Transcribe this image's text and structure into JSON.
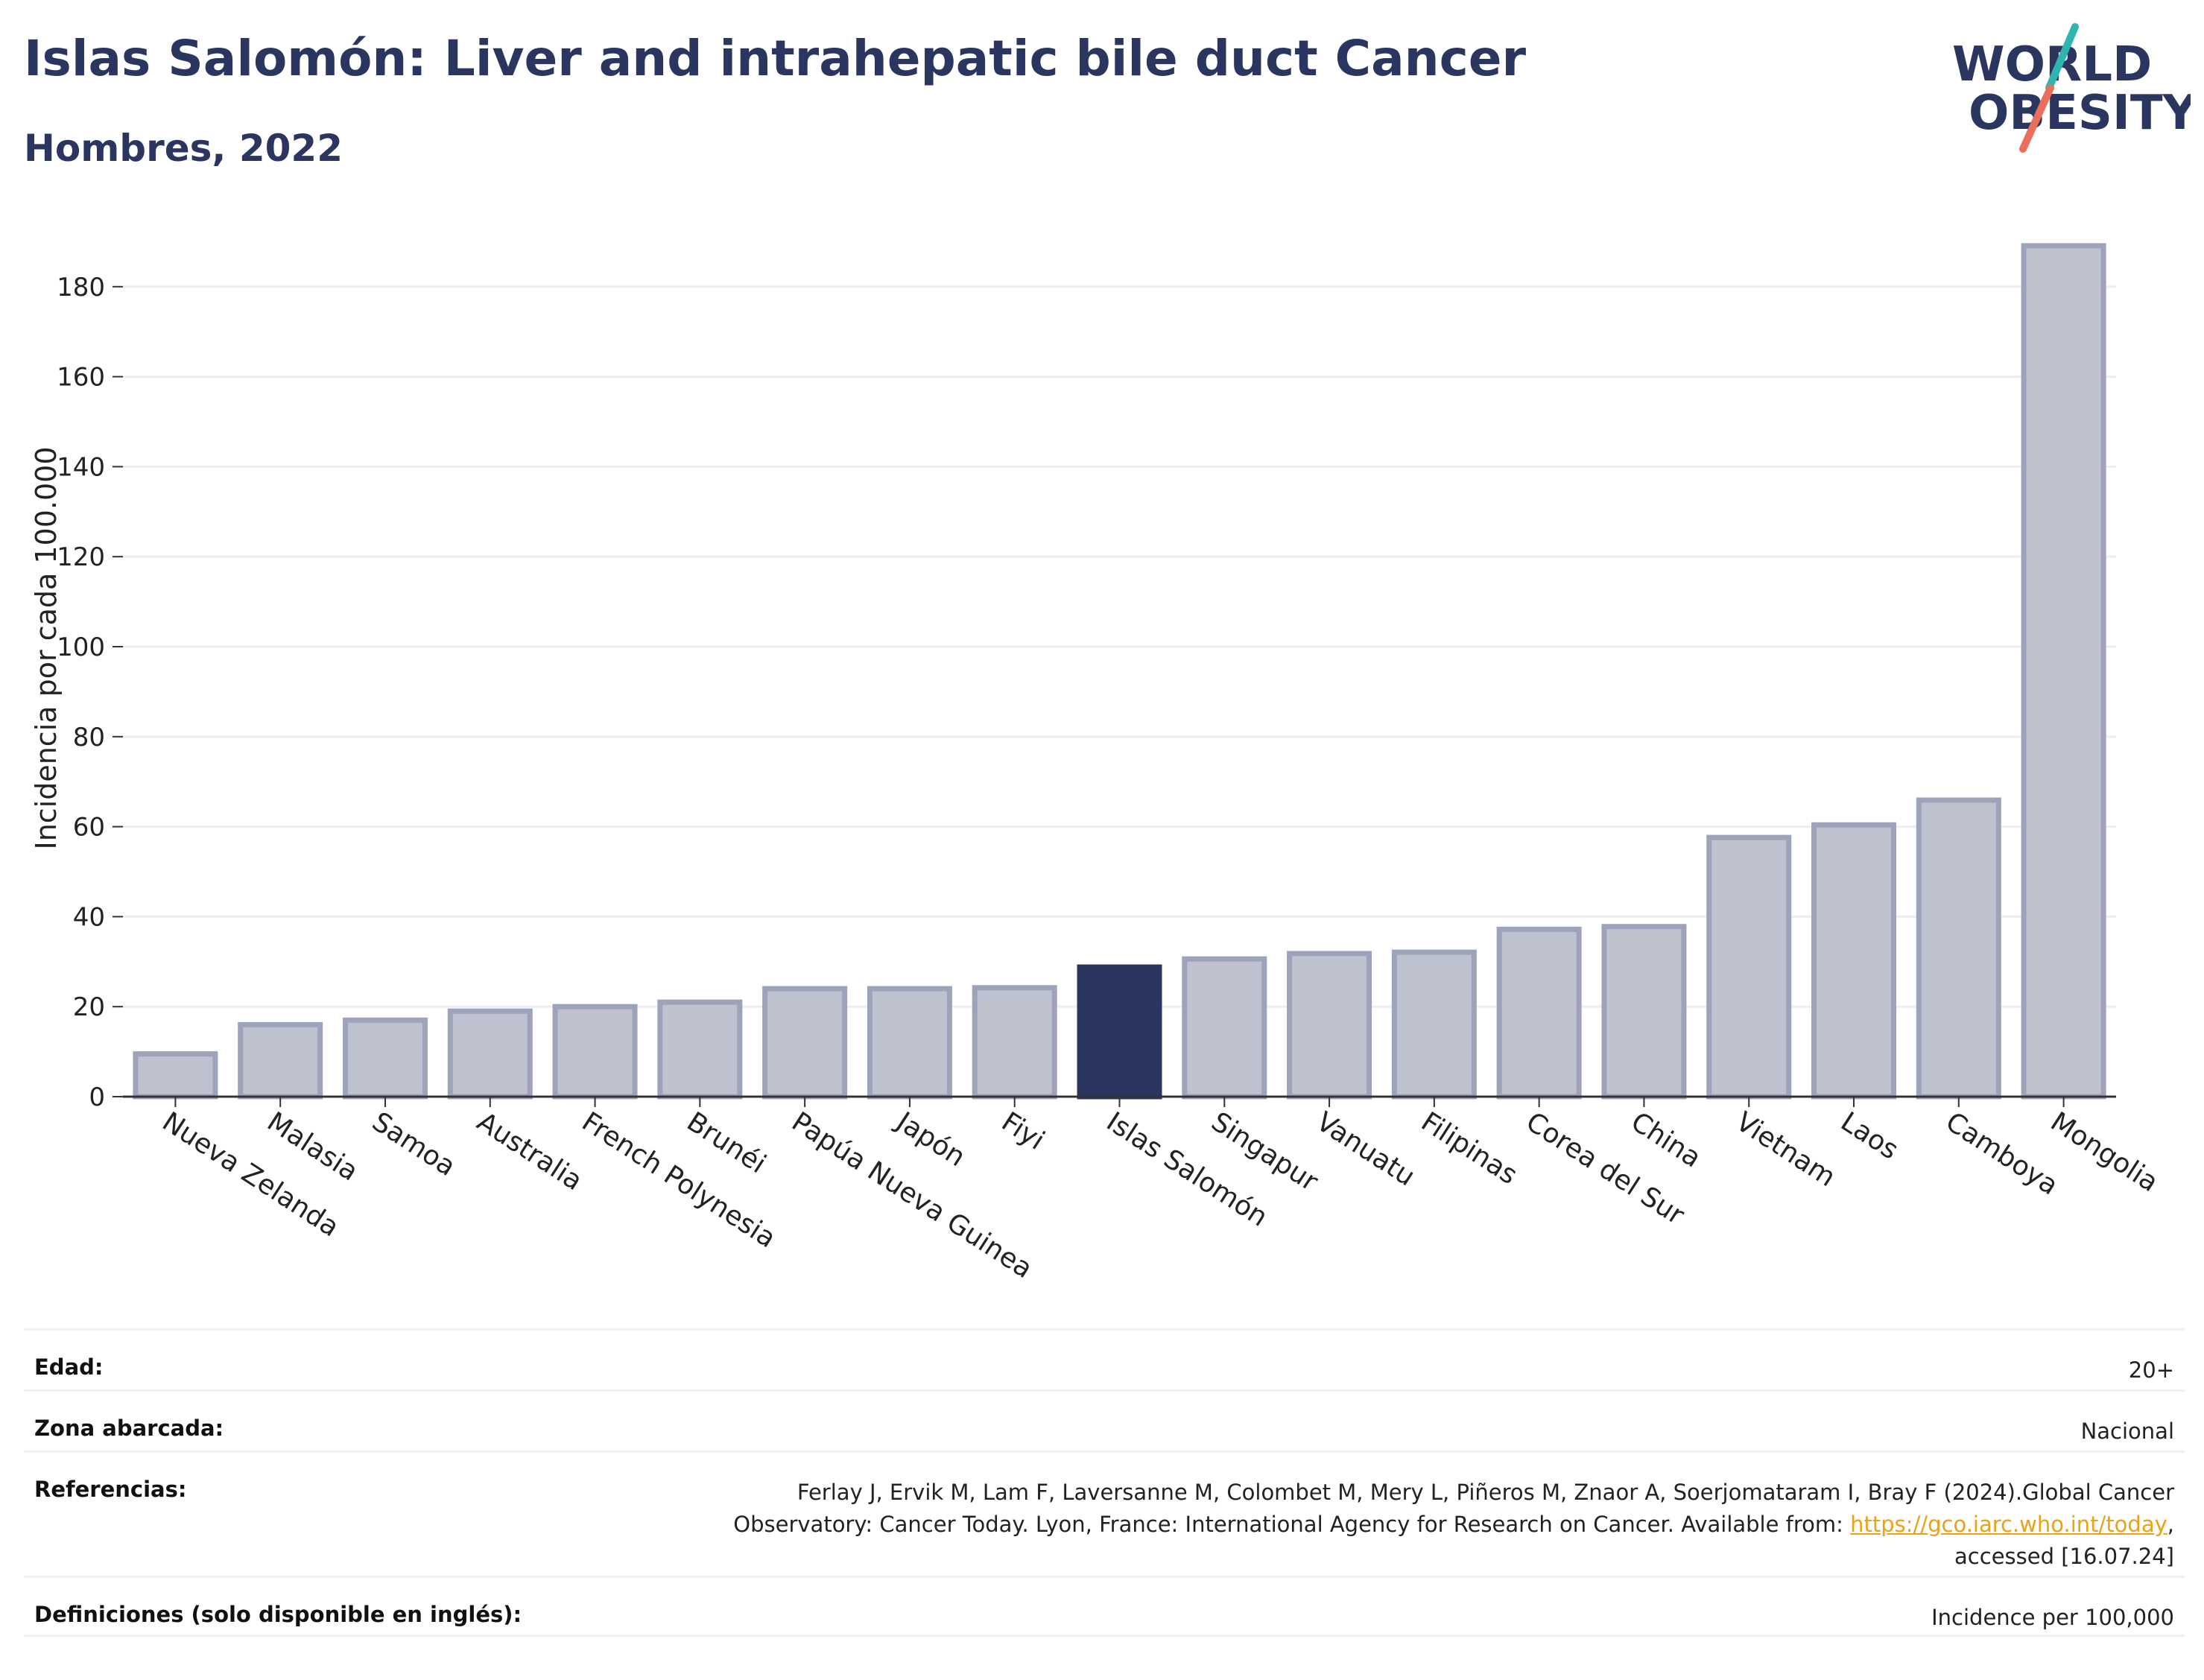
{
  "header": {
    "title": "Islas Salomón: Liver and intrahepatic bile duct Cancer",
    "subtitle": "Hombres, 2022"
  },
  "logo": {
    "line1": "WORLD",
    "line2": "OBESITY"
  },
  "colors": {
    "highlight": "#2b3660",
    "bar_fill": "#bec2cf",
    "bar_stroke": "#9da3ba",
    "grid": "#eceef2",
    "logo_teal": "#2fb5b0",
    "logo_coral": "#ea6f5a"
  },
  "chart_data": {
    "type": "bar",
    "ylabel": "Incidencia por cada 100.000",
    "xlabel": "",
    "ylim": [
      0,
      190
    ],
    "yticks": [
      0,
      20,
      40,
      60,
      80,
      100,
      120,
      140,
      160,
      180
    ],
    "grid": true,
    "highlight_category": "Islas Salomón",
    "categories": [
      "Nueva Zelanda",
      "Malasia",
      "Samoa",
      "Australia",
      "French Polynesia",
      "Brunéi",
      "Papúa Nueva Guinea",
      "Japón",
      "Fiyi",
      "Islas Salomón",
      "Singapur",
      "Vanuatu",
      "Filipinas",
      "Corea del Sur",
      "China",
      "Vietnam",
      "Laos",
      "Camboya",
      "Mongolia"
    ],
    "values": [
      9.5,
      16,
      17,
      19,
      20,
      21,
      24,
      24,
      24.2,
      28.8,
      30.6,
      31.8,
      32.1,
      37.2,
      37.8,
      57.6,
      60.4,
      65.9,
      189.1
    ]
  },
  "meta": {
    "rows": [
      {
        "label": "Edad:",
        "value": "20+"
      },
      {
        "label": "Zona abarcada:",
        "value": "Nacional"
      },
      {
        "label": "Referencias:",
        "value_line1": "Ferlay J, Ervik M, Lam F, Laversanne M, Colombet M, Mery L, Piñeros M, Znaor A, Soerjomataram I, Bray F (2024).Global Cancer",
        "value_line2_pre": "Observatory: Cancer Today. Lyon, France: International Agency for Research on Cancer. Available from: ",
        "link": "https://gco.iarc.who.int/today",
        "value_line2_post": ",",
        "value_line3": "accessed [16.07.24]"
      },
      {
        "label": "Definiciones (solo disponible en inglés):",
        "value": "Incidence per 100,000"
      }
    ]
  }
}
